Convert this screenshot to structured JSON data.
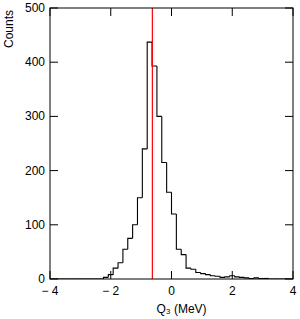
{
  "chart_data": {
    "type": "histogram",
    "x_label": "Q₃ (MeV)",
    "y_label": "Counts",
    "bins": [
      -4,
      -3.84,
      -3.68,
      -3.52,
      -3.36,
      -3.2,
      -3.04,
      -2.88,
      -2.72,
      -2.56,
      -2.4,
      -2.24,
      -2.08,
      -1.92,
      -1.76,
      -1.6,
      -1.44,
      -1.28,
      -1.12,
      -0.96,
      -0.8,
      -0.64,
      -0.48,
      -0.32,
      -0.16,
      0,
      0.16,
      0.32,
      0.48,
      0.64,
      0.8,
      0.96,
      1.12,
      1.28,
      1.44,
      1.6,
      1.76,
      1.92,
      2.08,
      2.24,
      2.4,
      2.56,
      2.72,
      2.88,
      3.04,
      3.2,
      3.36,
      3.52,
      3.68,
      3.84,
      4
    ],
    "counts": [
      0,
      0,
      0,
      0,
      0,
      0,
      0,
      0,
      0,
      0,
      0,
      3,
      8,
      20,
      30,
      55,
      75,
      100,
      150,
      240,
      437,
      393,
      300,
      215,
      160,
      120,
      55,
      45,
      20,
      18,
      12,
      10,
      8,
      6,
      5,
      3,
      4,
      6,
      4,
      3,
      2,
      1,
      2,
      1,
      1,
      0,
      0,
      0,
      0,
      0
    ],
    "color": "#000000",
    "reference_line": {
      "value": -0.63,
      "color": "#ff0000"
    },
    "xlim": [
      -4,
      4
    ],
    "xticks": [
      {
        "value": -4,
        "label": "− 4"
      },
      {
        "value": -2,
        "label": "− 2"
      },
      0,
      2,
      4
    ],
    "ylim": [
      0,
      500
    ],
    "yticks": [
      0,
      100,
      200,
      300,
      400,
      500
    ],
    "grid": false
  }
}
